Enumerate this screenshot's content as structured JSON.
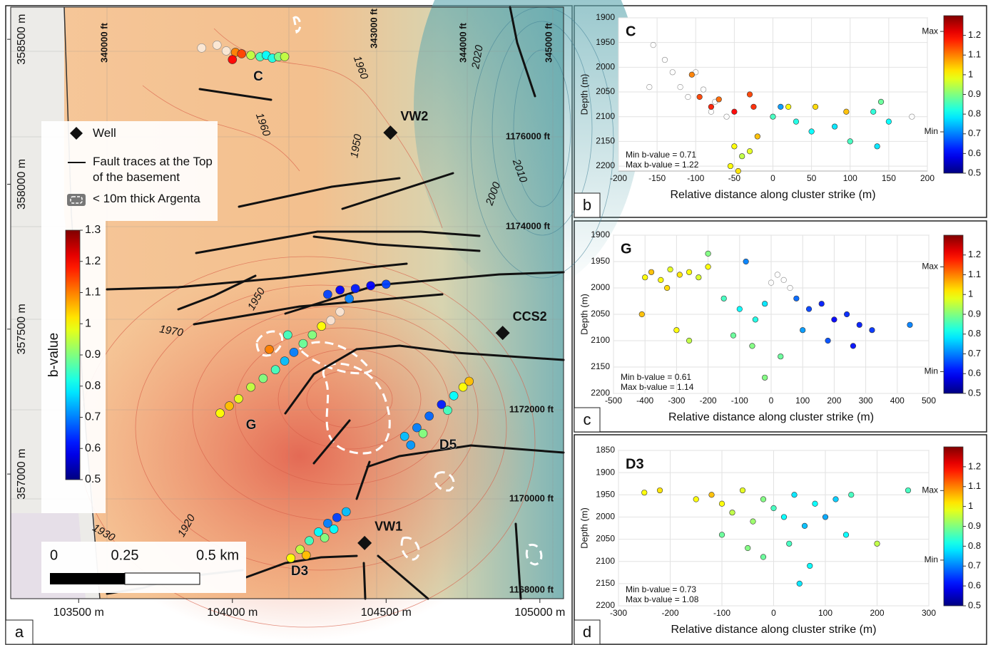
{
  "chart_data": [
    {
      "type": "map",
      "panel_label": "a",
      "xlim": [
        103279,
        105077
      ],
      "ylim": [
        356570,
        358611
      ],
      "xticks": [
        {
          "value": 103500,
          "label": "103500 m"
        },
        {
          "value": 104000,
          "label": "104000 m"
        },
        {
          "value": 104500,
          "label": "104500 m"
        },
        {
          "value": 105000,
          "label": "105000 m"
        }
      ],
      "yticks": [
        {
          "value": 357000,
          "label": "357000 m"
        },
        {
          "value": 357500,
          "label": "357500 m"
        },
        {
          "value": 358000,
          "label": "358000 m"
        },
        {
          "value": 358500,
          "label": "358500 m"
        }
      ],
      "events": {
        "x": [
          103900,
          103950,
          103980,
          104010,
          104030,
          104060,
          104090,
          104110,
          104130,
          104150,
          104000,
          104170,
          103960,
          103990,
          104020,
          104060,
          104100,
          104140,
          104170,
          104200,
          104230,
          104260,
          104290,
          104320,
          104350,
          104310,
          104350,
          104400,
          104450,
          104500,
          104380,
          104180,
          104120,
          104560,
          104600,
          104640,
          104680,
          104720,
          104750,
          104770,
          104620,
          104580,
          104700,
          104190,
          104220,
          104250,
          104280,
          104310,
          104340,
          104370,
          104300,
          104240,
          104330
        ],
        "y": [
          358470,
          358480,
          358460,
          358455,
          358450,
          358445,
          358440,
          358445,
          358435,
          358440,
          358430,
          358440,
          357210,
          357235,
          357260,
          357300,
          357330,
          357360,
          357390,
          357420,
          357450,
          357480,
          357510,
          357530,
          357560,
          357620,
          357635,
          357640,
          357650,
          357655,
          357605,
          357480,
          357430,
          357130,
          357160,
          357200,
          357240,
          357270,
          357300,
          357320,
          357140,
          357100,
          357220,
          356710,
          356740,
          356770,
          356800,
          356830,
          356850,
          356870,
          356780,
          356720,
          356810
        ],
        "b": [
          null,
          null,
          null,
          1.1,
          1.15,
          0.95,
          0.85,
          0.8,
          0.82,
          0.9,
          1.2,
          0.95,
          1.0,
          1.05,
          0.98,
          0.95,
          0.9,
          0.85,
          0.75,
          0.7,
          0.88,
          0.9,
          1.0,
          null,
          null,
          0.65,
          0.6,
          0.62,
          0.6,
          0.65,
          0.7,
          0.85,
          1.1,
          0.75,
          0.7,
          0.68,
          0.62,
          0.8,
          1.0,
          1.05,
          0.9,
          0.72,
          0.85,
          1.0,
          0.95,
          0.85,
          0.8,
          0.7,
          0.65,
          0.75,
          0.9,
          1.05,
          0.8
        ]
      },
      "colorbar": {
        "label": "b-value",
        "lim": [
          0.5,
          1.3
        ],
        "ticks": [
          0.5,
          0.6,
          0.7,
          0.8,
          0.9,
          1,
          1.1,
          1.2,
          1.3
        ]
      },
      "legend": [
        "Well",
        "Fault traces at the Top of the basement",
        "< 10m thick Argenta"
      ],
      "wells": {
        "names": [
          "VW2",
          "CCS2",
          "VW1"
        ],
        "x": [
          104514,
          104879,
          104430
        ],
        "y": [
          358178,
          357487,
          356762
        ]
      },
      "clusters": [
        "C",
        "G",
        "D5",
        "D3"
      ],
      "contour_labels": [
        "1960",
        "1960",
        "1950",
        "2020",
        "2010",
        "2000",
        "1950",
        "1970",
        "1920",
        "1930"
      ],
      "grid_labels": [
        "340000 ft",
        "343000 ft",
        "344000 ft",
        "345000 ft",
        "1176000 ft",
        "1174000 ft",
        "1172000 ft",
        "1170000 ft",
        "1168000 ft"
      ],
      "scale_bar": [
        "0",
        "0.25",
        "0.5 km"
      ]
    },
    {
      "type": "scatter",
      "panel_label": "b",
      "cluster": "C",
      "xlabel": "Relative distance along cluster strike (m)",
      "ylabel": "Depth (m)",
      "xlim": [
        -200,
        200
      ],
      "ylim": [
        1900,
        2210
      ],
      "y_inverted": true,
      "xticks": [
        -200,
        -150,
        -100,
        -50,
        0,
        50,
        100,
        150,
        200
      ],
      "yticks": [
        1900,
        1950,
        2000,
        2050,
        2100,
        2150,
        2200
      ],
      "x": [
        -155,
        -140,
        -120,
        -110,
        -100,
        -90,
        -75,
        -60,
        -130,
        -80,
        -160,
        180,
        -95,
        -80,
        -70,
        -50,
        -30,
        -25,
        -105,
        -50,
        -40,
        -55,
        -30,
        -45,
        -20,
        20,
        55,
        95,
        0,
        30,
        50,
        80,
        100,
        130,
        140,
        150,
        10,
        135
      ],
      "y": [
        1955,
        1985,
        2040,
        2060,
        2010,
        2045,
        2070,
        2100,
        2010,
        2090,
        2040,
        2100,
        2060,
        2080,
        2065,
        2090,
        2055,
        2080,
        2015,
        2160,
        2180,
        2200,
        2170,
        2210,
        2140,
        2080,
        2080,
        2090,
        2100,
        2110,
        2130,
        2120,
        2150,
        2090,
        2070,
        2110,
        2080,
        2160
      ],
      "b": [
        null,
        null,
        null,
        null,
        null,
        null,
        null,
        null,
        null,
        null,
        null,
        null,
        1.15,
        1.18,
        1.12,
        1.2,
        1.15,
        1.17,
        1.1,
        1.0,
        0.95,
        1.0,
        0.98,
        1.02,
        1.05,
        1.0,
        1.03,
        1.05,
        0.85,
        0.82,
        0.8,
        0.78,
        0.85,
        0.83,
        0.88,
        0.8,
        0.72,
        0.78
      ],
      "colorbar": {
        "lim": [
          0.5,
          1.3
        ],
        "ticks": [
          0.5,
          0.6,
          0.7,
          0.8,
          0.9,
          1,
          1.1,
          1.2
        ],
        "marks": [
          {
            "value": 1.22,
            "label": "Max"
          },
          {
            "value": 0.71,
            "label": "Min"
          }
        ]
      },
      "annotations": [
        "Min b-value = 0.71",
        "Max b-value = 1.22"
      ]
    },
    {
      "type": "scatter",
      "panel_label": "c",
      "cluster": "G",
      "xlabel": "Relative distance along cluster strike (m)",
      "ylabel": "Depth (m)",
      "xlim": [
        -500,
        500
      ],
      "ylim": [
        1900,
        2200
      ],
      "y_inverted": true,
      "xticks": [
        -500,
        -400,
        -300,
        -200,
        -100,
        0,
        100,
        200,
        300,
        400,
        500
      ],
      "yticks": [
        1900,
        1950,
        2000,
        2050,
        2100,
        2150,
        2200
      ],
      "x": [
        -400,
        -380,
        -350,
        -320,
        -290,
        -260,
        -230,
        -200,
        -330,
        -410,
        -300,
        -260,
        -150,
        -100,
        -50,
        -120,
        -60,
        -20,
        0,
        20,
        40,
        60,
        80,
        120,
        160,
        200,
        240,
        280,
        320,
        180,
        260,
        100,
        440,
        -80,
        -20,
        30,
        -200
      ],
      "y": [
        1980,
        1970,
        1985,
        1965,
        1975,
        1970,
        1980,
        1960,
        2000,
        2050,
        2080,
        2100,
        2020,
        2040,
        2060,
        2090,
        2110,
        2030,
        1990,
        1975,
        1985,
        2000,
        2020,
        2040,
        2030,
        2060,
        2050,
        2070,
        2080,
        2100,
        2110,
        2080,
        2070,
        1950,
        2170,
        2130,
        1935
      ],
      "b": [
        1.0,
        1.05,
        1.0,
        0.98,
        1.02,
        1.0,
        0.97,
        1.0,
        1.03,
        1.05,
        1.0,
        0.95,
        0.85,
        0.8,
        0.82,
        0.88,
        0.9,
        0.78,
        null,
        null,
        null,
        null,
        0.68,
        0.65,
        0.62,
        0.6,
        0.63,
        0.62,
        0.64,
        0.66,
        0.61,
        0.72,
        0.7,
        0.7,
        0.9,
        0.88,
        0.9
      ],
      "colorbar": {
        "lim": [
          0.5,
          1.3
        ],
        "ticks": [
          0.5,
          0.6,
          0.7,
          0.8,
          0.9,
          1,
          1.1,
          1.2
        ],
        "marks": [
          {
            "value": 1.14,
            "label": "Max"
          },
          {
            "value": 0.61,
            "label": "Min"
          }
        ]
      },
      "annotations": [
        "Min b-value = 0.61",
        "Max b-value = 1.14"
      ]
    },
    {
      "type": "scatter",
      "panel_label": "d",
      "cluster": "D3",
      "xlabel": "Relative distance along cluster strike (m)",
      "ylabel": "Depth (m)",
      "xlim": [
        -300,
        300
      ],
      "ylim": [
        1850,
        2200
      ],
      "y_inverted": true,
      "xticks": [
        -300,
        -200,
        -100,
        0,
        100,
        200,
        300
      ],
      "yticks": [
        1850,
        1900,
        1950,
        2000,
        2050,
        2100,
        2150,
        2200
      ],
      "x": [
        -250,
        -220,
        -150,
        -120,
        -100,
        -80,
        -60,
        -40,
        -20,
        0,
        20,
        40,
        60,
        80,
        100,
        120,
        150,
        -100,
        -50,
        30,
        70,
        50,
        260,
        200,
        140,
        -20
      ],
      "y": [
        1945,
        1940,
        1960,
        1950,
        1970,
        1990,
        1940,
        2010,
        1960,
        1980,
        2000,
        1950,
        2020,
        1970,
        2000,
        1960,
        1950,
        2040,
        2070,
        2060,
        2110,
        2150,
        1940,
        2060,
        2040,
        2090
      ],
      "b": [
        1.0,
        1.02,
        1.0,
        1.05,
        1.0,
        0.95,
        0.98,
        0.92,
        0.9,
        0.85,
        0.8,
        0.78,
        0.75,
        0.8,
        0.73,
        0.76,
        0.85,
        0.88,
        0.9,
        0.85,
        0.8,
        0.78,
        0.85,
        0.95,
        0.8,
        0.88
      ],
      "colorbar": {
        "lim": [
          0.5,
          1.3
        ],
        "ticks": [
          0.5,
          0.6,
          0.7,
          0.8,
          0.9,
          1,
          1.1,
          1.2
        ],
        "marks": [
          {
            "value": 1.08,
            "label": "Max"
          },
          {
            "value": 0.73,
            "label": "Min"
          }
        ]
      },
      "annotations": [
        "Min b-value = 0.73",
        "Max b-value = 1.08"
      ]
    }
  ]
}
